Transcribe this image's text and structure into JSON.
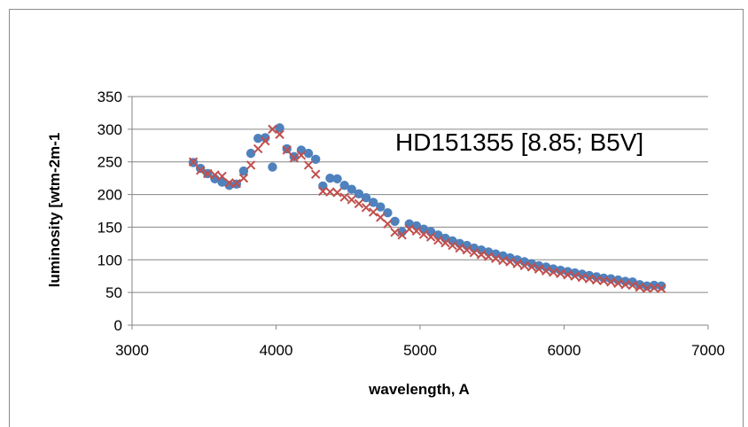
{
  "chart_data": {
    "type": "scatter",
    "title": "",
    "annotation": "HD151355 [8.85; B5V]",
    "xlabel": "wavelength, A",
    "ylabel": "luminosity [wtm-2m-1",
    "xlim": [
      3000,
      7000
    ],
    "ylim": [
      0,
      350
    ],
    "xticks": [
      3000,
      4000,
      5000,
      6000,
      7000
    ],
    "yticks": [
      0,
      50,
      100,
      150,
      200,
      250,
      300,
      350
    ],
    "grid": "horizontal",
    "legend": "none",
    "series": [
      {
        "marker": "circle",
        "color": "#4f81bd",
        "points": [
          [
            3425,
            249
          ],
          [
            3475,
            240
          ],
          [
            3525,
            232
          ],
          [
            3575,
            224
          ],
          [
            3625,
            219
          ],
          [
            3675,
            214
          ],
          [
            3725,
            216
          ],
          [
            3775,
            236
          ],
          [
            3825,
            263
          ],
          [
            3875,
            286
          ],
          [
            3925,
            287
          ],
          [
            3975,
            242
          ],
          [
            4025,
            302
          ],
          [
            4075,
            270
          ],
          [
            4125,
            258
          ],
          [
            4175,
            268
          ],
          [
            4225,
            263
          ],
          [
            4275,
            254
          ],
          [
            4325,
            213
          ],
          [
            4375,
            225
          ],
          [
            4425,
            224
          ],
          [
            4475,
            214
          ],
          [
            4525,
            208
          ],
          [
            4575,
            201
          ],
          [
            4625,
            195
          ],
          [
            4675,
            188
          ],
          [
            4725,
            181
          ],
          [
            4775,
            172
          ],
          [
            4825,
            159
          ],
          [
            4875,
            143
          ],
          [
            4925,
            155
          ],
          [
            4975,
            152
          ],
          [
            5025,
            147
          ],
          [
            5075,
            143
          ],
          [
            5125,
            138
          ],
          [
            5175,
            133
          ],
          [
            5225,
            129
          ],
          [
            5275,
            125
          ],
          [
            5325,
            122
          ],
          [
            5375,
            118
          ],
          [
            5425,
            115
          ],
          [
            5475,
            112
          ],
          [
            5525,
            109
          ],
          [
            5575,
            106
          ],
          [
            5625,
            103
          ],
          [
            5675,
            100
          ],
          [
            5725,
            97
          ],
          [
            5775,
            94
          ],
          [
            5825,
            91
          ],
          [
            5875,
            89
          ],
          [
            5925,
            86
          ],
          [
            5975,
            84
          ],
          [
            6025,
            82
          ],
          [
            6075,
            80
          ],
          [
            6125,
            78
          ],
          [
            6175,
            76
          ],
          [
            6225,
            74
          ],
          [
            6275,
            72
          ],
          [
            6325,
            71
          ],
          [
            6375,
            69
          ],
          [
            6425,
            67
          ],
          [
            6475,
            66
          ],
          [
            6525,
            62
          ],
          [
            6575,
            60
          ],
          [
            6625,
            61
          ],
          [
            6675,
            60
          ]
        ]
      },
      {
        "marker": "x",
        "color": "#c0504d",
        "points": [
          [
            3425,
            250
          ],
          [
            3475,
            237
          ],
          [
            3525,
            232
          ],
          [
            3575,
            230
          ],
          [
            3625,
            228
          ],
          [
            3675,
            218
          ],
          [
            3725,
            217
          ],
          [
            3775,
            225
          ],
          [
            3825,
            245
          ],
          [
            3875,
            270
          ],
          [
            3925,
            282
          ],
          [
            3975,
            300
          ],
          [
            4025,
            292
          ],
          [
            4075,
            268
          ],
          [
            4125,
            256
          ],
          [
            4175,
            260
          ],
          [
            4225,
            245
          ],
          [
            4275,
            231
          ],
          [
            4325,
            205
          ],
          [
            4375,
            204
          ],
          [
            4425,
            203
          ],
          [
            4475,
            196
          ],
          [
            4525,
            192
          ],
          [
            4575,
            186
          ],
          [
            4625,
            180
          ],
          [
            4675,
            173
          ],
          [
            4725,
            165
          ],
          [
            4775,
            155
          ],
          [
            4825,
            142
          ],
          [
            4875,
            138
          ],
          [
            4925,
            147
          ],
          [
            4975,
            144
          ],
          [
            5025,
            139
          ],
          [
            5075,
            135
          ],
          [
            5125,
            130
          ],
          [
            5175,
            126
          ],
          [
            5225,
            122
          ],
          [
            5275,
            118
          ],
          [
            5325,
            115
          ],
          [
            5375,
            111
          ],
          [
            5425,
            108
          ],
          [
            5475,
            105
          ],
          [
            5525,
            102
          ],
          [
            5575,
            99
          ],
          [
            5625,
            97
          ],
          [
            5675,
            94
          ],
          [
            5725,
            91
          ],
          [
            5775,
            89
          ],
          [
            5825,
            86
          ],
          [
            5875,
            83
          ],
          [
            5925,
            81
          ],
          [
            5975,
            79
          ],
          [
            6025,
            77
          ],
          [
            6075,
            75
          ],
          [
            6125,
            73
          ],
          [
            6175,
            71
          ],
          [
            6225,
            69
          ],
          [
            6275,
            68
          ],
          [
            6325,
            66
          ],
          [
            6375,
            64
          ],
          [
            6425,
            62
          ],
          [
            6475,
            61
          ],
          [
            6525,
            58
          ],
          [
            6575,
            56
          ],
          [
            6625,
            57
          ],
          [
            6675,
            56
          ]
        ]
      }
    ]
  }
}
